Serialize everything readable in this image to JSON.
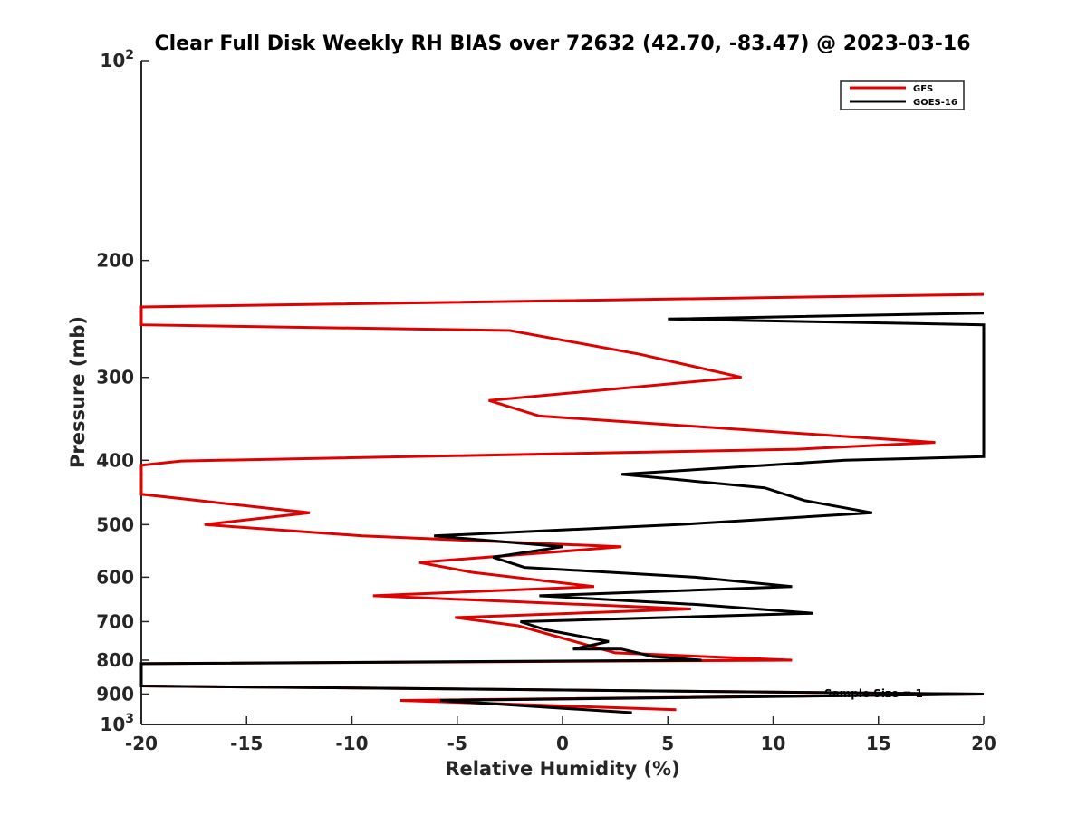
{
  "chart_data": {
    "type": "line",
    "title": "Clear Full Disk Weekly RH BIAS over 72632 (42.70, -83.47) @ 2023-03-16",
    "xlabel": "Relative Humidity (%)",
    "ylabel": "Pressure (mb)",
    "xlim": [
      -20,
      20
    ],
    "ylim": [
      100,
      1000
    ],
    "y_scale": "log",
    "y_reversed": true,
    "xticks": [
      -20,
      -15,
      -10,
      -5,
      0,
      5,
      10,
      15,
      20
    ],
    "yticks": [
      {
        "value": 100,
        "label": "10",
        "sup": "2"
      },
      {
        "value": 200,
        "label": "200",
        "sup": ""
      },
      {
        "value": 300,
        "label": "300",
        "sup": ""
      },
      {
        "value": 400,
        "label": "400",
        "sup": ""
      },
      {
        "value": 500,
        "label": "500",
        "sup": ""
      },
      {
        "value": 600,
        "label": "600",
        "sup": ""
      },
      {
        "value": 700,
        "label": "700",
        "sup": ""
      },
      {
        "value": 800,
        "label": "800",
        "sup": ""
      },
      {
        "value": 900,
        "label": "900",
        "sup": ""
      },
      {
        "value": 1000,
        "label": "10",
        "sup": "3"
      }
    ],
    "legend_position": "top-right",
    "grid": false,
    "annotation": "Sample Size = 1",
    "series": [
      {
        "name": "GFS",
        "color": "#e00000",
        "points": [
          [
            20,
            225
          ],
          [
            -20,
            235
          ],
          [
            -20,
            250
          ],
          [
            -2.5,
            255
          ],
          [
            3.7,
            277
          ],
          [
            8.5,
            300
          ],
          [
            -3.5,
            325
          ],
          [
            -1.1,
            343
          ],
          [
            17.7,
            376
          ],
          [
            11.1,
            385
          ],
          [
            -18.1,
            401
          ],
          [
            -20,
            407
          ],
          [
            -20,
            450
          ],
          [
            -12,
            480
          ],
          [
            -17,
            500
          ],
          [
            -9.5,
            520
          ],
          [
            2.8,
            540
          ],
          [
            -6.8,
            570
          ],
          [
            -4.3,
            590
          ],
          [
            1.5,
            620
          ],
          [
            -9,
            640
          ],
          [
            6.1,
            670
          ],
          [
            -5.1,
            690
          ],
          [
            -2.1,
            710
          ],
          [
            2.5,
            780
          ],
          [
            10.9,
            800
          ],
          [
            -20,
            810
          ],
          [
            -20,
            875
          ],
          [
            20,
            900
          ],
          [
            -7.7,
            920
          ],
          [
            5.4,
            950
          ]
        ]
      },
      {
        "name": "GOES-16",
        "color": "#000000",
        "points": [
          [
            20,
            240
          ],
          [
            5,
            245
          ],
          [
            20,
            250
          ],
          [
            20,
            395
          ],
          [
            13.4,
            400
          ],
          [
            2.8,
            420
          ],
          [
            9.6,
            440
          ],
          [
            11.5,
            460
          ],
          [
            14.7,
            480
          ],
          [
            5.5,
            500
          ],
          [
            -6.1,
            520
          ],
          [
            0,
            540
          ],
          [
            -3.3,
            560
          ],
          [
            -1.8,
            580
          ],
          [
            6.3,
            600
          ],
          [
            10.9,
            620
          ],
          [
            -1.1,
            640
          ],
          [
            6.5,
            660
          ],
          [
            11.9,
            680
          ],
          [
            -2,
            700
          ],
          [
            -0.8,
            720
          ],
          [
            2.2,
            750
          ],
          [
            0.5,
            770
          ],
          [
            2.8,
            770
          ],
          [
            4.3,
            790
          ],
          [
            6.6,
            800
          ],
          [
            -20,
            810
          ],
          [
            -20,
            875
          ],
          [
            20,
            900
          ],
          [
            -5.8,
            920
          ],
          [
            3.3,
            960
          ]
        ]
      }
    ]
  }
}
